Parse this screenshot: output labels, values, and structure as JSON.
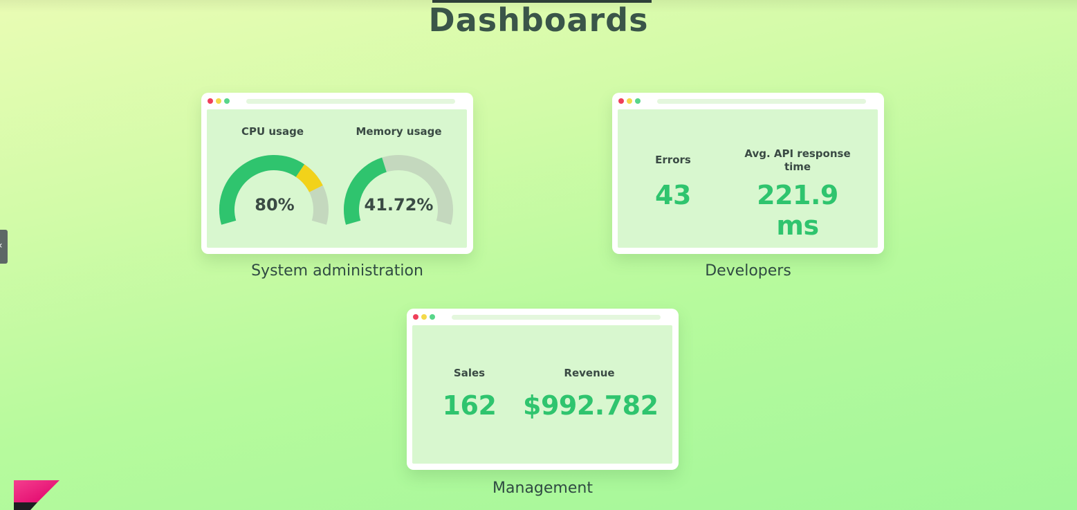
{
  "page": {
    "title": "Dashboards"
  },
  "dashboards": [
    {
      "caption": "System administration",
      "metrics": [
        {
          "label": "CPU usage",
          "value": "80%",
          "gauge_fraction": 0.8
        },
        {
          "label": "Memory usage",
          "value": "41.72%",
          "gauge_fraction": 0.4172
        }
      ]
    },
    {
      "caption": "Developers",
      "metrics": [
        {
          "label": "Errors",
          "value": "43"
        },
        {
          "label": "Avg. API response time",
          "value": "221.9 ms"
        }
      ]
    },
    {
      "caption": "Management",
      "metrics": [
        {
          "label": "Sales",
          "value": "162"
        },
        {
          "label": "Revenue",
          "value": "$992.782"
        }
      ]
    }
  ],
  "colors": {
    "accent_green": "#2fc46e",
    "gauge_warning": "#f2d21a",
    "gauge_track": "#c4d8be",
    "dot_red": "#ef3f5a",
    "dot_yellow": "#f4d94a",
    "dot_green": "#58d68a"
  },
  "icons": {
    "side_tab": "chevron-left-icon",
    "brand": "brand-logo-icon"
  }
}
